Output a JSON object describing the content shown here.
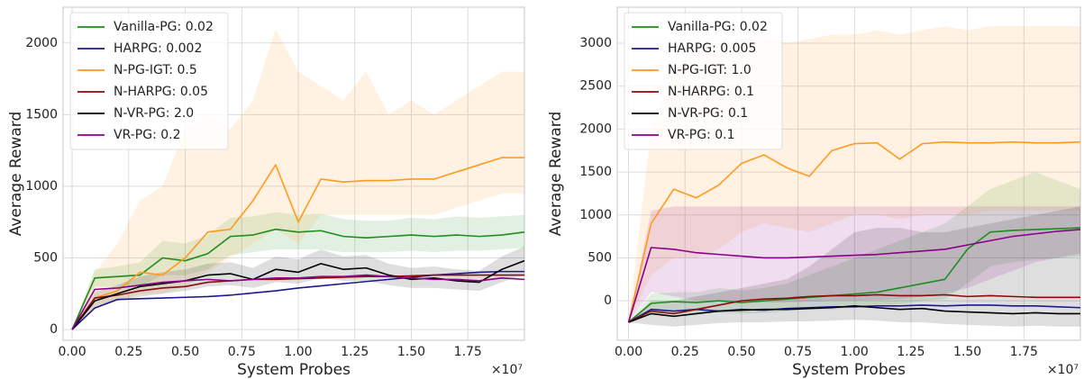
{
  "chart_data": [
    {
      "type": "line",
      "xlabel": "System Probes",
      "ylabel": "Average Reward",
      "x_multiplier": "×10⁷",
      "xlim": [
        -0.04,
        2.0
      ],
      "ylim": [
        -75,
        2250
      ],
      "xticks": [
        {
          "value": 0,
          "label": "0.00"
        },
        0.25,
        {
          "value": 0.5,
          "label": "0.50"
        },
        0.75,
        {
          "value": 1,
          "label": "1.00"
        },
        1.25,
        {
          "value": 1.5,
          "label": "1.50"
        },
        1.75
      ],
      "yticks": [
        0,
        500,
        1000,
        1500,
        2000
      ],
      "grid": true,
      "legend": "upper left",
      "x": [
        0,
        0.1,
        0.2,
        0.3,
        0.4,
        0.5,
        0.6,
        0.7,
        0.8,
        0.9,
        1.0,
        1.1,
        1.2,
        1.3,
        1.4,
        1.5,
        1.6,
        1.7,
        1.8,
        1.9,
        2.0
      ],
      "series": [
        {
          "name": "Vanilla-PG: 0.02",
          "color": "#1e8c1e",
          "values": [
            0,
            360,
            370,
            380,
            500,
            480,
            530,
            650,
            660,
            700,
            680,
            690,
            650,
            640,
            650,
            660,
            650,
            660,
            650,
            660,
            680
          ],
          "lower": [
            0,
            300,
            300,
            300,
            380,
            380,
            420,
            520,
            540,
            560,
            560,
            560,
            540,
            540,
            540,
            550,
            540,
            550,
            550,
            560,
            570
          ],
          "upper": [
            0,
            420,
            440,
            470,
            620,
            600,
            660,
            780,
            790,
            820,
            800,
            810,
            770,
            760,
            760,
            780,
            770,
            790,
            780,
            790,
            800
          ]
        },
        {
          "name": "HARPG: 0.002",
          "color": "#1a1a8c",
          "values": [
            0,
            150,
            210,
            215,
            220,
            225,
            230,
            240,
            255,
            270,
            290,
            305,
            320,
            335,
            350,
            365,
            380,
            390,
            400,
            405,
            405
          ]
        },
        {
          "name": "N-PG-IGT: 0.5",
          "color": "#ff9a1f",
          "values": [
            0,
            220,
            270,
            400,
            380,
            500,
            680,
            700,
            900,
            1150,
            750,
            1050,
            1030,
            1040,
            1040,
            1050,
            1050,
            1100,
            1150,
            1200,
            1200
          ],
          "lower": [
            0,
            150,
            200,
            250,
            250,
            300,
            400,
            500,
            600,
            700,
            600,
            800,
            800,
            800,
            800,
            800,
            800,
            850,
            900,
            950,
            950
          ],
          "upper": [
            0,
            400,
            600,
            900,
            1000,
            1400,
            1500,
            1400,
            1600,
            2100,
            1800,
            1700,
            1600,
            1800,
            1500,
            1600,
            1500,
            1600,
            1700,
            1800,
            1800
          ]
        },
        {
          "name": "N-HARPG: 0.05",
          "color": "#8b0a0a",
          "values": [
            0,
            220,
            240,
            270,
            290,
            300,
            330,
            340,
            350,
            350,
            355,
            360,
            365,
            370,
            370,
            375,
            380,
            380,
            380,
            380,
            380
          ]
        },
        {
          "name": "N-VR-PG: 2.0",
          "color": "#000000",
          "values": [
            0,
            200,
            250,
            300,
            320,
            340,
            380,
            390,
            350,
            420,
            400,
            460,
            420,
            430,
            380,
            350,
            360,
            340,
            330,
            420,
            480
          ],
          "lower": [
            0,
            150,
            200,
            230,
            250,
            270,
            300,
            310,
            290,
            330,
            320,
            360,
            340,
            340,
            310,
            290,
            290,
            280,
            270,
            330,
            380
          ],
          "upper": [
            0,
            260,
            310,
            370,
            400,
            420,
            460,
            470,
            430,
            510,
            490,
            560,
            510,
            520,
            460,
            430,
            440,
            420,
            410,
            510,
            580
          ]
        },
        {
          "name": "VR-PG: 0.2",
          "color": "#8b008b",
          "values": [
            0,
            280,
            290,
            310,
            330,
            340,
            350,
            340,
            350,
            360,
            360,
            370,
            370,
            380,
            370,
            360,
            350,
            350,
            340,
            360,
            350
          ]
        }
      ]
    },
    {
      "type": "line",
      "xlabel": "System Probes",
      "ylabel": "Average Reward",
      "x_multiplier": "×10⁷",
      "xlim": [
        -0.05,
        2.0
      ],
      "ylim": [
        -460,
        3420
      ],
      "xticks": [
        {
          "value": 0,
          "label": "0.00"
        },
        0.25,
        {
          "value": 0.5,
          "label": "0.50"
        },
        0.75,
        {
          "value": 1,
          "label": "1.00"
        },
        1.25,
        {
          "value": 1.5,
          "label": "1.50"
        },
        1.75
      ],
      "yticks": [
        0,
        500,
        1000,
        1500,
        2000,
        2500,
        3000
      ],
      "grid": true,
      "legend": "upper left",
      "x": [
        0,
        0.1,
        0.2,
        0.3,
        0.4,
        0.5,
        0.6,
        0.7,
        0.8,
        0.9,
        1.0,
        1.1,
        1.2,
        1.3,
        1.4,
        1.5,
        1.6,
        1.7,
        1.8,
        1.9,
        2.0
      ],
      "series": [
        {
          "name": "Vanilla-PG: 0.02",
          "color": "#1e8c1e",
          "values": [
            -250,
            -30,
            -10,
            -20,
            0,
            -20,
            0,
            20,
            40,
            60,
            80,
            100,
            150,
            200,
            250,
            600,
            800,
            820,
            830,
            840,
            850
          ],
          "lower": [
            -250,
            -150,
            -150,
            -150,
            -140,
            -150,
            -140,
            -120,
            -100,
            -100,
            -80,
            -70,
            -40,
            0,
            20,
            200,
            400,
            450,
            480,
            500,
            520
          ],
          "upper": [
            -250,
            80,
            100,
            100,
            150,
            120,
            150,
            200,
            300,
            400,
            500,
            600,
            700,
            800,
            900,
            1100,
            1300,
            1400,
            1500,
            1400,
            1300
          ]
        },
        {
          "name": "HARPG: 0.005",
          "color": "#1a1a8c",
          "values": [
            -250,
            -100,
            -120,
            -100,
            -120,
            -100,
            -110,
            -90,
            -80,
            -70,
            -70,
            -60,
            -60,
            -50,
            -60,
            -50,
            -50,
            -60,
            -60,
            -70,
            -80
          ]
        },
        {
          "name": "N-PG-IGT: 1.0",
          "color": "#ff9a1f",
          "values": [
            -250,
            900,
            1300,
            1200,
            1350,
            1600,
            1700,
            1550,
            1450,
            1750,
            1830,
            1840,
            1650,
            1830,
            1850,
            1840,
            1840,
            1850,
            1840,
            1840,
            1850
          ],
          "lower": [
            -250,
            300,
            500,
            500,
            600,
            800,
            900,
            850,
            800,
            900,
            1000,
            1000,
            950,
            1000,
            1000,
            1000,
            1050,
            1050,
            1050,
            1050,
            1050
          ],
          "upper": [
            -250,
            2000,
            2700,
            2900,
            3000,
            3050,
            3100,
            3000,
            3050,
            3100,
            3100,
            3150,
            3100,
            3150,
            3200,
            3150,
            3200,
            3200,
            3200,
            3200,
            3200
          ]
        },
        {
          "name": "N-HARPG: 0.1",
          "color": "#8b0a0a",
          "values": [
            -250,
            -120,
            -150,
            -100,
            -50,
            0,
            20,
            30,
            50,
            60,
            60,
            70,
            60,
            60,
            70,
            50,
            60,
            50,
            40,
            40,
            40
          ]
        },
        {
          "name": "N-VR-PG: 0.1",
          "color": "#000000",
          "values": [
            -250,
            -150,
            -180,
            -150,
            -120,
            -110,
            -100,
            -100,
            -90,
            -80,
            -60,
            -80,
            -100,
            -90,
            -120,
            -130,
            -140,
            -150,
            -140,
            -150,
            -150
          ],
          "lower": [
            -250,
            -280,
            -300,
            -280,
            -260,
            -250,
            -250,
            -240,
            -240,
            -230,
            -220,
            -230,
            -250,
            -250,
            -270,
            -280,
            -290,
            -300,
            -290,
            -300,
            -300
          ],
          "upper": [
            -250,
            0,
            0,
            50,
            100,
            150,
            200,
            250,
            400,
            600,
            800,
            850,
            850,
            800,
            800,
            850,
            900,
            950,
            1000,
            1050,
            1100
          ]
        },
        {
          "name": "VR-PG: 0.1",
          "color": "#8b008b",
          "values": [
            -250,
            620,
            600,
            560,
            540,
            520,
            500,
            500,
            510,
            520,
            530,
            540,
            560,
            580,
            600,
            650,
            700,
            750,
            780,
            810,
            830
          ],
          "lower": [
            -250,
            100,
            50,
            0,
            0,
            -20,
            -20,
            -20,
            -10,
            0,
            0,
            10,
            20,
            50,
            80,
            150,
            250,
            350,
            450,
            500,
            550
          ],
          "upper": [
            -250,
            1050,
            1100,
            1100,
            1100,
            1100,
            1100,
            1100,
            1100,
            1100,
            1100,
            1100,
            1100,
            1100,
            1100,
            1100,
            1100,
            1100,
            1100,
            1100,
            1100
          ]
        }
      ]
    }
  ]
}
